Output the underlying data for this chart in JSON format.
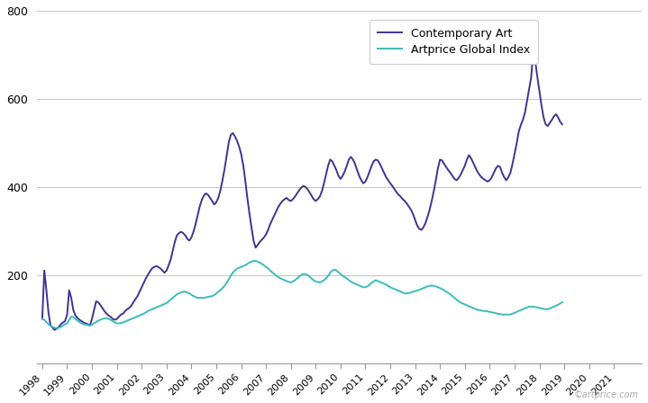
{
  "contemporary_art_color": "#3d3591",
  "artprice_global_color": "#3bbcb8",
  "contemporary_art_label": "Contemporary Art",
  "artprice_global_label": "Artprice Global Index",
  "ylim": [
    0,
    800
  ],
  "yticks": [
    200,
    400,
    600,
    800
  ],
  "background_color": "#ffffff",
  "grid_color": "#c8c8c8",
  "watermark": "©artprice.com",
  "line_width": 1.4,
  "start_year": 1998,
  "contemporary_art": [
    100,
    210,
    165,
    115,
    85,
    80,
    75,
    78,
    82,
    88,
    92,
    95,
    110,
    165,
    148,
    120,
    108,
    102,
    98,
    95,
    92,
    90,
    88,
    85,
    100,
    120,
    140,
    138,
    132,
    125,
    118,
    112,
    108,
    105,
    100,
    98,
    100,
    105,
    110,
    112,
    118,
    122,
    125,
    130,
    138,
    145,
    152,
    162,
    172,
    182,
    192,
    200,
    208,
    215,
    218,
    220,
    218,
    215,
    210,
    205,
    210,
    222,
    235,
    255,
    275,
    290,
    295,
    298,
    295,
    290,
    282,
    278,
    285,
    298,
    315,
    335,
    355,
    370,
    380,
    385,
    382,
    375,
    368,
    360,
    365,
    375,
    392,
    415,
    440,
    470,
    500,
    518,
    522,
    515,
    505,
    492,
    475,
    450,
    415,
    375,
    340,
    308,
    278,
    262,
    268,
    275,
    280,
    285,
    292,
    302,
    315,
    325,
    335,
    345,
    355,
    362,
    368,
    372,
    375,
    370,
    368,
    372,
    378,
    385,
    392,
    398,
    402,
    400,
    395,
    388,
    380,
    372,
    368,
    372,
    378,
    390,
    408,
    428,
    448,
    462,
    458,
    448,
    438,
    425,
    418,
    425,
    435,
    448,
    462,
    468,
    462,
    452,
    438,
    425,
    415,
    408,
    412,
    422,
    435,
    448,
    458,
    462,
    460,
    452,
    442,
    432,
    422,
    415,
    408,
    402,
    395,
    388,
    382,
    378,
    372,
    368,
    362,
    355,
    348,
    338,
    325,
    312,
    305,
    302,
    308,
    318,
    332,
    348,
    368,
    390,
    415,
    442,
    462,
    460,
    452,
    445,
    438,
    432,
    425,
    418,
    415,
    420,
    428,
    438,
    448,
    462,
    472,
    465,
    455,
    445,
    435,
    428,
    422,
    418,
    415,
    412,
    415,
    422,
    432,
    442,
    448,
    445,
    432,
    422,
    415,
    422,
    432,
    452,
    475,
    498,
    525,
    540,
    552,
    568,
    595,
    622,
    648,
    705,
    685,
    650,
    618,
    585,
    558,
    542,
    538,
    545,
    552,
    560,
    565,
    558,
    548,
    542
  ],
  "artprice_global": [
    100,
    98,
    93,
    88,
    84,
    82,
    80,
    79,
    80,
    82,
    85,
    88,
    90,
    98,
    105,
    104,
    100,
    96,
    93,
    90,
    88,
    87,
    86,
    85,
    87,
    90,
    93,
    96,
    98,
    100,
    101,
    102,
    100,
    98,
    95,
    92,
    90,
    90,
    91,
    92,
    94,
    96,
    98,
    100,
    102,
    104,
    106,
    108,
    110,
    112,
    115,
    118,
    120,
    122,
    124,
    126,
    128,
    130,
    132,
    134,
    136,
    140,
    144,
    148,
    152,
    156,
    158,
    160,
    162,
    162,
    160,
    158,
    155,
    152,
    150,
    148,
    148,
    148,
    148,
    149,
    150,
    151,
    152,
    154,
    158,
    162,
    165,
    170,
    175,
    182,
    190,
    198,
    205,
    210,
    214,
    216,
    218,
    220,
    222,
    225,
    228,
    230,
    232,
    232,
    230,
    228,
    225,
    222,
    218,
    215,
    210,
    206,
    202,
    198,
    195,
    192,
    190,
    188,
    186,
    184,
    183,
    185,
    188,
    192,
    196,
    200,
    202,
    202,
    200,
    196,
    192,
    188,
    185,
    184,
    183,
    185,
    188,
    192,
    198,
    205,
    210,
    212,
    210,
    206,
    202,
    198,
    195,
    192,
    188,
    185,
    182,
    180,
    178,
    176,
    174,
    172,
    172,
    174,
    178,
    182,
    185,
    188,
    186,
    184,
    182,
    180,
    178,
    175,
    172,
    170,
    168,
    166,
    164,
    162,
    160,
    158,
    158,
    159,
    160,
    162,
    163,
    165,
    166,
    168,
    170,
    172,
    174,
    175,
    176,
    175,
    174,
    172,
    170,
    168,
    165,
    162,
    159,
    156,
    152,
    148,
    144,
    140,
    137,
    135,
    133,
    131,
    129,
    127,
    125,
    123,
    121,
    120,
    119,
    118,
    118,
    117,
    116,
    115,
    114,
    113,
    112,
    111,
    110,
    110,
    110,
    110,
    110,
    112,
    114,
    116,
    118,
    120,
    122,
    124,
    126,
    128,
    128,
    128,
    127,
    126,
    125,
    124,
    123,
    122,
    122,
    124,
    126,
    128,
    130,
    132,
    135,
    138
  ]
}
